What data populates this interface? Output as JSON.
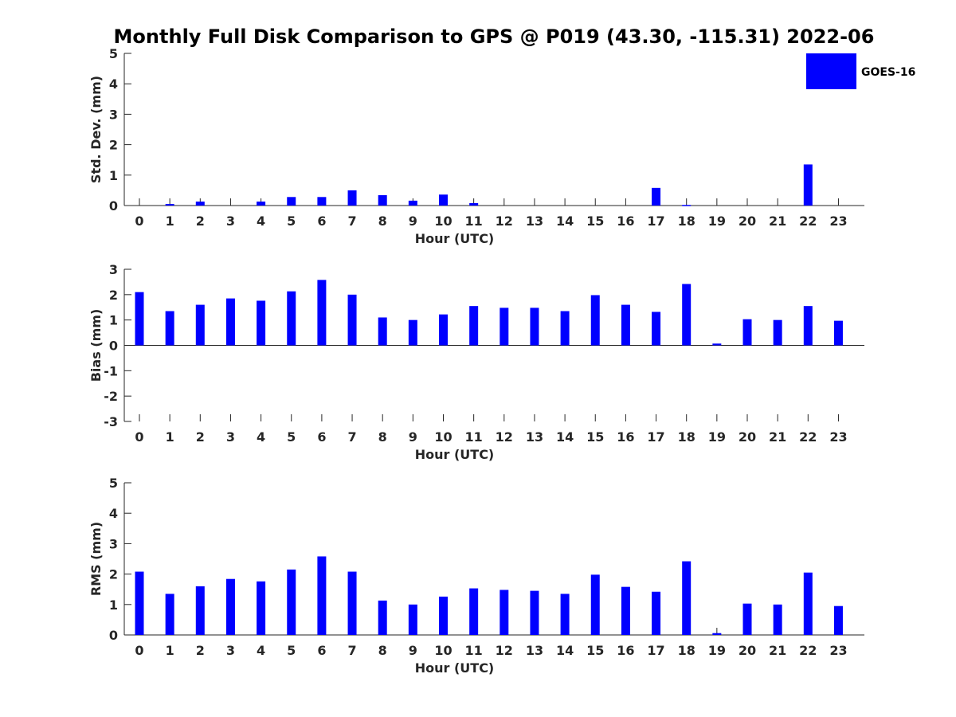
{
  "chart_title": "Monthly Full Disk Comparison to GPS @ P019 (43.30, -115.31) 2022-06",
  "colors": {
    "bar": "#0000ff",
    "axis": "#262626",
    "background": "#ffffff"
  },
  "legend": {
    "label": "GOES-16",
    "placement": "top-right"
  },
  "chart_data": [
    {
      "type": "bar",
      "series": [
        {
          "name": "GOES-16",
          "values": [
            null,
            0.05,
            0.13,
            null,
            0.13,
            0.28,
            0.28,
            0.5,
            0.34,
            0.16,
            0.36,
            0.08,
            null,
            null,
            null,
            null,
            null,
            0.58,
            0.02,
            null,
            null,
            null,
            1.35,
            null
          ]
        }
      ],
      "categories": [
        "0",
        "1",
        "2",
        "3",
        "4",
        "5",
        "6",
        "7",
        "8",
        "9",
        "10",
        "11",
        "12",
        "13",
        "14",
        "15",
        "16",
        "17",
        "18",
        "19",
        "20",
        "21",
        "22",
        "23"
      ],
      "xlabel": "Hour (UTC)",
      "ylabel": "Std. Dev. (mm)",
      "ylim": [
        0,
        5
      ],
      "yticks": [
        "0",
        "1",
        "2",
        "3",
        "4",
        "5"
      ],
      "grid": false
    },
    {
      "type": "bar",
      "series": [
        {
          "name": "GOES-16",
          "values": [
            2.1,
            1.35,
            1.6,
            1.85,
            1.76,
            2.13,
            2.58,
            2.0,
            1.1,
            1.0,
            1.22,
            1.55,
            1.48,
            1.48,
            1.35,
            1.98,
            1.6,
            1.32,
            2.42,
            0.07,
            1.03,
            1.0,
            1.55,
            0.97
          ]
        }
      ],
      "categories": [
        "0",
        "1",
        "2",
        "3",
        "4",
        "5",
        "6",
        "7",
        "8",
        "9",
        "10",
        "11",
        "12",
        "13",
        "14",
        "15",
        "16",
        "17",
        "18",
        "19",
        "20",
        "21",
        "22",
        "23"
      ],
      "xlabel": "Hour (UTC)",
      "ylabel": "Bias (mm)",
      "ylim": [
        -3,
        3
      ],
      "yticks": [
        "-3",
        "-2",
        "-1",
        "0",
        "1",
        "2",
        "3"
      ],
      "grid": false
    },
    {
      "type": "bar",
      "series": [
        {
          "name": "GOES-16",
          "values": [
            2.08,
            1.35,
            1.6,
            1.84,
            1.76,
            2.15,
            2.58,
            2.08,
            1.13,
            1.0,
            1.26,
            1.53,
            1.48,
            1.45,
            1.35,
            1.98,
            1.58,
            1.42,
            2.42,
            0.06,
            1.03,
            1.0,
            2.05,
            0.95
          ]
        }
      ],
      "categories": [
        "0",
        "1",
        "2",
        "3",
        "4",
        "5",
        "6",
        "7",
        "8",
        "9",
        "10",
        "11",
        "12",
        "13",
        "14",
        "15",
        "16",
        "17",
        "18",
        "19",
        "20",
        "21",
        "22",
        "23"
      ],
      "xlabel": "Hour (UTC)",
      "ylabel": "RMS (mm)",
      "ylim": [
        0,
        5
      ],
      "yticks": [
        "0",
        "1",
        "2",
        "3",
        "4",
        "5"
      ],
      "grid": false
    }
  ]
}
